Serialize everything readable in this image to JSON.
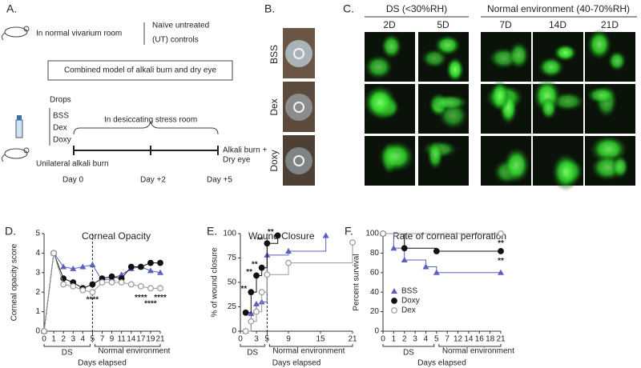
{
  "figure": {
    "A": {
      "label": "A.",
      "vivarium": "In normal vivarium room",
      "controls": [
        "Naïve untreated",
        "(UT) controls"
      ],
      "model": "Combined model of alkali burn and dry eye",
      "drops_title": "Drops",
      "drops": [
        "BSS",
        "Dex",
        "Doxy"
      ],
      "stress_room": "In desiccating stress room",
      "burn": "Unilateral alkali burn",
      "outcome": [
        "Alkali burn +",
        "Dry eye"
      ],
      "days": [
        "Day 0",
        "Day +2",
        "Day +5"
      ]
    },
    "B": {
      "label": "B.",
      "rows": [
        "BSS",
        "Dex",
        "Doxy"
      ]
    },
    "C": {
      "label": "C.",
      "groups": [
        "DS (<30%RH)",
        "Normal environment (40-70%RH)"
      ],
      "columns": [
        "2D",
        "5D",
        "7D",
        "14D",
        "21D"
      ]
    }
  },
  "chart_data": [
    {
      "type": "line",
      "panel_label": "D.",
      "title": "Corneal Opacity",
      "y_label": "Corneal opacity score",
      "x_label": "Days elapsed",
      "categories": [
        "0",
        "1",
        "2",
        "3",
        "4",
        "5",
        "7",
        "9",
        "11",
        "14",
        "17",
        "19",
        "21"
      ],
      "ylim": [
        0,
        5
      ],
      "yticks": [
        0,
        1,
        2,
        3,
        4,
        5
      ],
      "divider": "5",
      "x_groups": [
        {
          "label": "DS",
          "from": "0",
          "to": "5"
        },
        {
          "label": "Normal environment",
          "from": "5",
          "to": "21"
        }
      ],
      "series": [
        {
          "color": "#5b5fbf",
          "marker": "triangle",
          "values": [
            0,
            4,
            3.3,
            3.2,
            3.3,
            3.4,
            2.6,
            2.7,
            2.9,
            3.2,
            3.3,
            3.1,
            3.0
          ]
        },
        {
          "color": "#111111",
          "marker": "circle",
          "values": [
            0,
            4,
            2.7,
            2.5,
            2.2,
            2.4,
            2.7,
            2.8,
            2.7,
            3.3,
            3.3,
            3.5,
            3.5
          ]
        },
        {
          "color": "#999999",
          "marker": "circle-open",
          "values": [
            0,
            4,
            2.4,
            2.3,
            2.1,
            2.0,
            2.5,
            2.5,
            2.5,
            2.4,
            2.3,
            2.2,
            2.2
          ]
        }
      ],
      "annotations": [
        {
          "text": "****",
          "x": "5",
          "y": 1.6
        },
        {
          "text": "****",
          "x": "17",
          "y": 1.7
        },
        {
          "text": "****",
          "x": "19",
          "y": 1.4
        },
        {
          "text": "****",
          "x": "21",
          "y": 1.7
        }
      ]
    },
    {
      "type": "step",
      "panel_label": "E.",
      "title": "Wound Closure",
      "y_label": "% of wound closure",
      "x_label": "Days elapsed",
      "xlim": [
        0,
        21
      ],
      "xticks": [
        0,
        3,
        5,
        9,
        15,
        21
      ],
      "ylim": [
        0,
        100
      ],
      "yticks": [
        0,
        25,
        50,
        75,
        100
      ],
      "divider": 5,
      "x_groups": [
        {
          "label": "DS",
          "from": 0,
          "to": 5
        },
        {
          "label": "Normal environment",
          "from": 5,
          "to": 21
        }
      ],
      "series": [
        {
          "color": "#5b5fbf",
          "marker": "triangle",
          "x": [
            1,
            2,
            3,
            4,
            5,
            9,
            16
          ],
          "values": [
            0,
            18,
            28,
            30,
            78,
            82,
            98
          ]
        },
        {
          "color": "#111111",
          "marker": "circle",
          "x": [
            1,
            2,
            3,
            4,
            5,
            7
          ],
          "values": [
            19,
            40,
            57,
            65,
            90,
            98
          ]
        },
        {
          "color": "#999999",
          "marker": "circle-open",
          "x": [
            1,
            2,
            3,
            4,
            5,
            9,
            21
          ],
          "values": [
            0,
            10,
            20,
            40,
            58,
            70,
            91
          ]
        }
      ],
      "annotations": [
        {
          "text": "**",
          "x": 2,
          "y": 40
        },
        {
          "text": "**",
          "x": 3,
          "y": 57
        },
        {
          "text": "**",
          "x": 4,
          "y": 65
        },
        {
          "text": "**",
          "x": 5,
          "y": 90
        },
        {
          "text": "**",
          "x": 7,
          "y": 98
        }
      ]
    },
    {
      "type": "step",
      "panel_label": "F.",
      "title": "Rate of corneal perforation",
      "y_label": "Percent survival",
      "x_label": "Days elapsed",
      "categories": [
        "0",
        "1",
        "2",
        "3",
        "4",
        "5",
        "7",
        "12",
        "14",
        "16",
        "18",
        "21"
      ],
      "ylim": [
        0,
        100
      ],
      "yticks": [
        0,
        20,
        40,
        60,
        80,
        100
      ],
      "legend": "lower left",
      "x_groups": [
        {
          "label": "DS",
          "from": "0",
          "to": "5"
        },
        {
          "label": "Normal environment",
          "from": "5",
          "to": "21"
        }
      ],
      "series": [
        {
          "name": "BSS",
          "color": "#5b5fbf",
          "marker": "triangle",
          "values": [
            100,
            85,
            73,
            73,
            66,
            60,
            60,
            60,
            60,
            60,
            60,
            60
          ]
        },
        {
          "name": "Doxy",
          "color": "#111111",
          "marker": "circle",
          "values": [
            100,
            100,
            85,
            85,
            85,
            82,
            82,
            82,
            82,
            82,
            82,
            82
          ]
        },
        {
          "name": "Dex",
          "color": "#999999",
          "marker": "circle-open",
          "values": [
            100,
            100,
            100,
            100,
            100,
            100,
            100,
            100,
            100,
            100,
            100,
            100
          ]
        }
      ],
      "annotations": [
        {
          "text": "**",
          "x": "21",
          "y": 90
        },
        {
          "text": "**",
          "x": "21",
          "y": 72
        }
      ]
    }
  ]
}
